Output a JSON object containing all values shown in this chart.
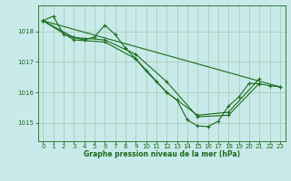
{
  "background_color": "#c8eaea",
  "grid_color": "#a8c8a8",
  "line_color": "#1a6b1a",
  "xlabel": "Graphe pression niveau de la mer (hPa)",
  "xlim": [
    -0.5,
    23.5
  ],
  "ylim": [
    1014.4,
    1018.85
  ],
  "yticks": [
    1015,
    1016,
    1017,
    1018
  ],
  "xticks": [
    0,
    1,
    2,
    3,
    4,
    5,
    6,
    7,
    8,
    9,
    10,
    11,
    12,
    13,
    14,
    15,
    16,
    17,
    18,
    19,
    20,
    21,
    22,
    23
  ],
  "series1_x": [
    0,
    1,
    2,
    3,
    4,
    5,
    6,
    7,
    8,
    9,
    10,
    11,
    12,
    13,
    14,
    15,
    16,
    17,
    18,
    19,
    20,
    21,
    22,
    23
  ],
  "series1_y": [
    1018.35,
    1018.5,
    1017.9,
    1017.8,
    1017.72,
    1017.82,
    1018.2,
    1017.9,
    1017.45,
    1017.1,
    1016.7,
    1016.35,
    1016.0,
    1015.75,
    1015.1,
    1014.9,
    1014.88,
    1015.05,
    1015.55,
    1015.85,
    1016.3,
    1016.28,
    1016.22,
    1016.18
  ],
  "series2_x": [
    0,
    3,
    6,
    9,
    12,
    15,
    18,
    21
  ],
  "series2_y": [
    1018.35,
    1017.8,
    1017.72,
    1017.25,
    1016.35,
    1015.2,
    1015.25,
    1016.3
  ],
  "series3_x": [
    0,
    3,
    6,
    9,
    12,
    15,
    18,
    21
  ],
  "series3_y": [
    1018.35,
    1017.72,
    1017.65,
    1017.1,
    1016.0,
    1015.25,
    1015.35,
    1016.45
  ],
  "series4_x": [
    0,
    23
  ],
  "series4_y": [
    1018.35,
    1016.18
  ],
  "tick_fontsize": 5,
  "xlabel_fontsize": 5.5,
  "lw": 0.8,
  "ms": 2.5,
  "mew": 0.8
}
